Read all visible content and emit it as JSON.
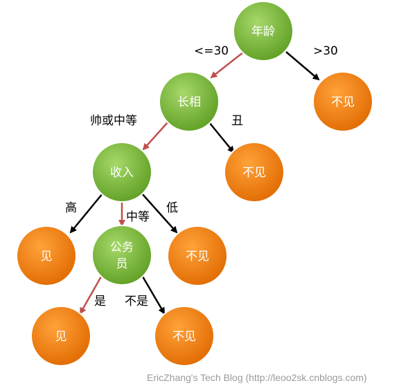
{
  "colors": {
    "decision_fill": "#7dbd3a",
    "decision_stroke": "#ffffff",
    "leaf_fill": "#f07d00",
    "chosen_edge": "#c0504d",
    "other_edge": "#000000",
    "watermark": "#9a9a9a"
  },
  "nodes": {
    "age": {
      "label": "年龄",
      "kind": "decision"
    },
    "looks": {
      "label": "长相",
      "kind": "decision"
    },
    "income": {
      "label": "收入",
      "kind": "decision"
    },
    "civil": {
      "label_line1": "公务",
      "label_line2": "员",
      "kind": "decision"
    },
    "leaf_age_gt30": {
      "label": "不见",
      "kind": "leaf"
    },
    "leaf_ugly": {
      "label": "不见",
      "kind": "leaf"
    },
    "leaf_high": {
      "label": "见",
      "kind": "leaf"
    },
    "leaf_low": {
      "label": "不见",
      "kind": "leaf"
    },
    "leaf_civil_yes": {
      "label": "见",
      "kind": "leaf"
    },
    "leaf_civil_no": {
      "label": "不见",
      "kind": "leaf"
    }
  },
  "edges": {
    "age_le30": {
      "label": "<=30",
      "chosen": true
    },
    "age_gt30": {
      "label": ">30",
      "chosen": false
    },
    "looks_handsome": {
      "label": "帅或中等",
      "chosen": true
    },
    "looks_ugly": {
      "label": "丑",
      "chosen": false
    },
    "income_high": {
      "label": "高",
      "chosen": false
    },
    "income_mid": {
      "label": "中等",
      "chosen": true
    },
    "income_low": {
      "label": "低",
      "chosen": false
    },
    "civil_yes": {
      "label": "是",
      "chosen": true
    },
    "civil_no": {
      "label": "不是",
      "chosen": false
    }
  },
  "watermark": "EricZhang's Tech Blog (http://leoo2sk.cnblogs.com)"
}
